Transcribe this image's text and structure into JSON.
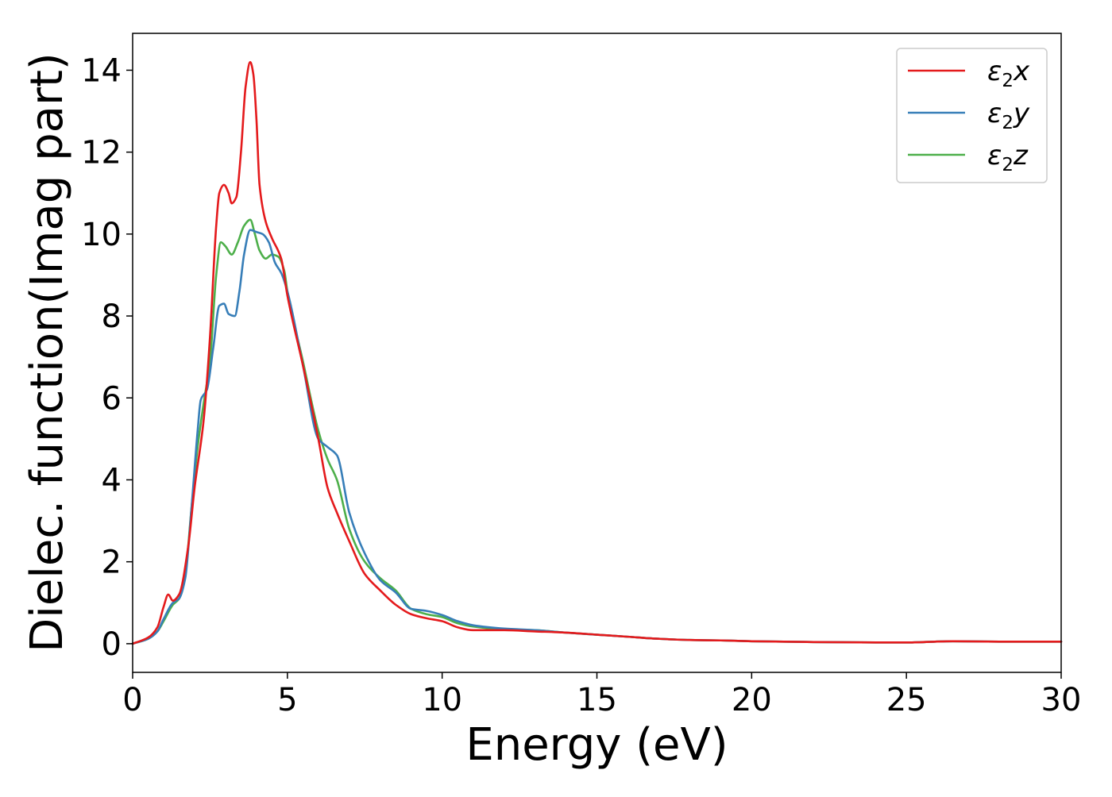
{
  "chart_data": {
    "type": "line",
    "title": "",
    "xlabel": "Energy (eV)",
    "ylabel": "Dielec. function(Imag part)",
    "xlim": [
      0,
      30
    ],
    "ylim": [
      -0.7,
      14.9
    ],
    "xticks": [
      0,
      5,
      10,
      15,
      20,
      25,
      30
    ],
    "yticks": [
      0,
      2,
      4,
      6,
      8,
      10,
      12,
      14
    ],
    "grid": false,
    "legend_position": "top-right",
    "series": [
      {
        "name": "ε2x",
        "label_base": "ε",
        "label_sub": "2",
        "label_var": "x",
        "color": "#e41a1c",
        "x": [
          0,
          0.5,
          0.8,
          1.0,
          1.15,
          1.3,
          1.5,
          1.8,
          2.0,
          2.3,
          2.5,
          2.7,
          2.8,
          2.95,
          3.1,
          3.2,
          3.35,
          3.5,
          3.65,
          3.8,
          3.9,
          4.0,
          4.1,
          4.3,
          4.5,
          4.8,
          5.0,
          5.5,
          6.0,
          6.3,
          6.6,
          7.0,
          7.5,
          8.0,
          8.5,
          9.0,
          9.5,
          10.0,
          10.5,
          11.0,
          12.0,
          13.0,
          14.0,
          15.0,
          16.0,
          17.0,
          18.0,
          19.0,
          20.0,
          22.0,
          24.0,
          25.0,
          26.5,
          28.0,
          30.0
        ],
        "y": [
          0.0,
          0.15,
          0.4,
          0.9,
          1.2,
          1.05,
          1.2,
          2.4,
          3.8,
          5.5,
          7.5,
          10.2,
          11.0,
          11.2,
          11.0,
          10.75,
          10.9,
          12.0,
          13.6,
          14.2,
          13.9,
          12.8,
          11.2,
          10.3,
          9.9,
          9.4,
          8.5,
          6.8,
          5.0,
          3.8,
          3.2,
          2.5,
          1.7,
          1.3,
          0.95,
          0.72,
          0.62,
          0.55,
          0.4,
          0.33,
          0.33,
          0.3,
          0.27,
          0.22,
          0.17,
          0.12,
          0.09,
          0.08,
          0.06,
          0.04,
          0.03,
          0.03,
          0.06,
          0.05,
          0.05
        ]
      },
      {
        "name": "ε2y",
        "label_base": "ε",
        "label_sub": "2",
        "label_var": "y",
        "color": "#377eb8",
        "x": [
          0,
          0.5,
          0.8,
          1.0,
          1.3,
          1.5,
          1.7,
          1.9,
          2.1,
          2.2,
          2.4,
          2.6,
          2.8,
          2.95,
          3.1,
          3.3,
          3.45,
          3.6,
          3.8,
          4.0,
          4.2,
          4.4,
          4.6,
          4.8,
          5.0,
          5.5,
          6.0,
          6.3,
          6.6,
          7.0,
          7.5,
          8.0,
          8.5,
          9.0,
          9.5,
          10.0,
          10.5,
          11.0,
          12.0,
          13.0,
          14.0,
          15.0,
          16.0,
          17.0,
          18.0,
          19.0,
          20.0,
          22.0,
          24.0,
          25.0,
          26.5,
          28.0,
          30.0
        ],
        "y": [
          0.0,
          0.12,
          0.3,
          0.6,
          1.0,
          1.1,
          1.6,
          3.3,
          5.2,
          5.95,
          6.2,
          7.2,
          8.25,
          8.3,
          8.05,
          8.0,
          8.6,
          9.5,
          10.1,
          10.05,
          10.0,
          9.8,
          9.3,
          9.05,
          8.6,
          6.8,
          5.0,
          4.8,
          4.6,
          3.2,
          2.2,
          1.55,
          1.25,
          0.85,
          0.8,
          0.7,
          0.55,
          0.45,
          0.37,
          0.33,
          0.27,
          0.22,
          0.17,
          0.12,
          0.09,
          0.08,
          0.06,
          0.04,
          0.03,
          0.03,
          0.06,
          0.05,
          0.05
        ]
      },
      {
        "name": "ε2z",
        "label_base": "ε",
        "label_sub": "2",
        "label_var": "z",
        "color": "#4daf4a",
        "x": [
          0,
          0.5,
          0.8,
          1.0,
          1.3,
          1.5,
          1.7,
          1.9,
          2.1,
          2.3,
          2.5,
          2.7,
          2.85,
          3.0,
          3.2,
          3.4,
          3.6,
          3.8,
          3.95,
          4.1,
          4.3,
          4.5,
          4.7,
          4.9,
          5.0,
          5.5,
          6.0,
          6.3,
          6.6,
          7.0,
          7.5,
          8.0,
          8.5,
          9.0,
          9.5,
          10.0,
          10.5,
          11.0,
          12.0,
          13.0,
          14.0,
          15.0,
          16.0,
          17.0,
          18.0,
          19.0,
          20.0,
          22.0,
          24.0,
          25.0,
          26.5,
          28.0,
          30.0
        ],
        "y": [
          0.0,
          0.12,
          0.3,
          0.55,
          0.95,
          1.1,
          1.7,
          3.3,
          4.8,
          5.9,
          6.9,
          9.0,
          9.8,
          9.7,
          9.5,
          9.8,
          10.2,
          10.35,
          10.0,
          9.6,
          9.4,
          9.5,
          9.45,
          9.1,
          8.6,
          6.9,
          5.2,
          4.5,
          4.0,
          2.8,
          2.0,
          1.6,
          1.3,
          0.85,
          0.72,
          0.65,
          0.5,
          0.42,
          0.35,
          0.33,
          0.27,
          0.22,
          0.17,
          0.12,
          0.09,
          0.08,
          0.06,
          0.04,
          0.03,
          0.03,
          0.06,
          0.05,
          0.05
        ]
      }
    ]
  }
}
